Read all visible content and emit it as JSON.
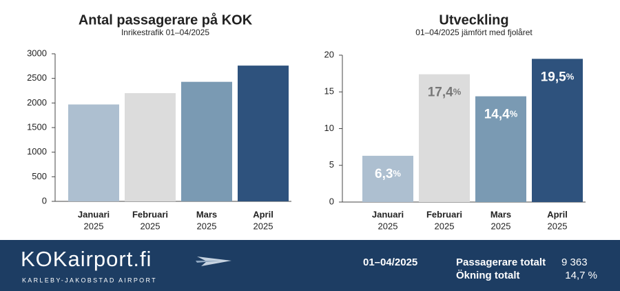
{
  "chart_data": [
    {
      "type": "bar",
      "title": "Antal passagerare på KOK",
      "subtitle": "Inrikestrafik 01–04/2025",
      "categories": [
        [
          "Januari",
          "2025"
        ],
        [
          "Februari",
          "2025"
        ],
        [
          "Mars",
          "2025"
        ],
        [
          "April",
          "2025"
        ]
      ],
      "values": [
        1970,
        2200,
        2430,
        2760
      ],
      "colors": [
        "#adbfd0",
        "#dcdcdc",
        "#7a9ab3",
        "#2e527d"
      ],
      "ylim": [
        0,
        3000
      ],
      "yticks": [
        0,
        500,
        1000,
        1500,
        2000,
        2500,
        3000
      ]
    },
    {
      "type": "bar",
      "title": "Utveckling",
      "subtitle": "01–04/2025 jämfört med fjolåret",
      "categories": [
        [
          "Januari",
          "2025"
        ],
        [
          "Februari",
          "2025"
        ],
        [
          "Mars",
          "2025"
        ],
        [
          "April",
          "2025"
        ]
      ],
      "values": [
        6.3,
        17.4,
        14.4,
        19.5
      ],
      "value_labels": [
        "6,3%",
        "17,4%",
        "14,4%",
        "19,5%"
      ],
      "colors": [
        "#adbfd0",
        "#dcdcdc",
        "#7a9ab3",
        "#2e527d"
      ],
      "label_colors": [
        "#ffffff",
        "#777777",
        "#ffffff",
        "#ffffff"
      ],
      "ylim": [
        0,
        20
      ],
      "yticks": [
        0,
        5,
        10,
        15,
        20
      ]
    }
  ],
  "footer": {
    "logo": "KOKairport.fi",
    "tagline": "KARLEBY-JAKOBSTAD AIRPORT",
    "period": "01–04/2025",
    "rows": [
      [
        "Passagerare totalt",
        "9 363"
      ],
      [
        "Ökning totalt",
        "14,7 %"
      ]
    ]
  }
}
